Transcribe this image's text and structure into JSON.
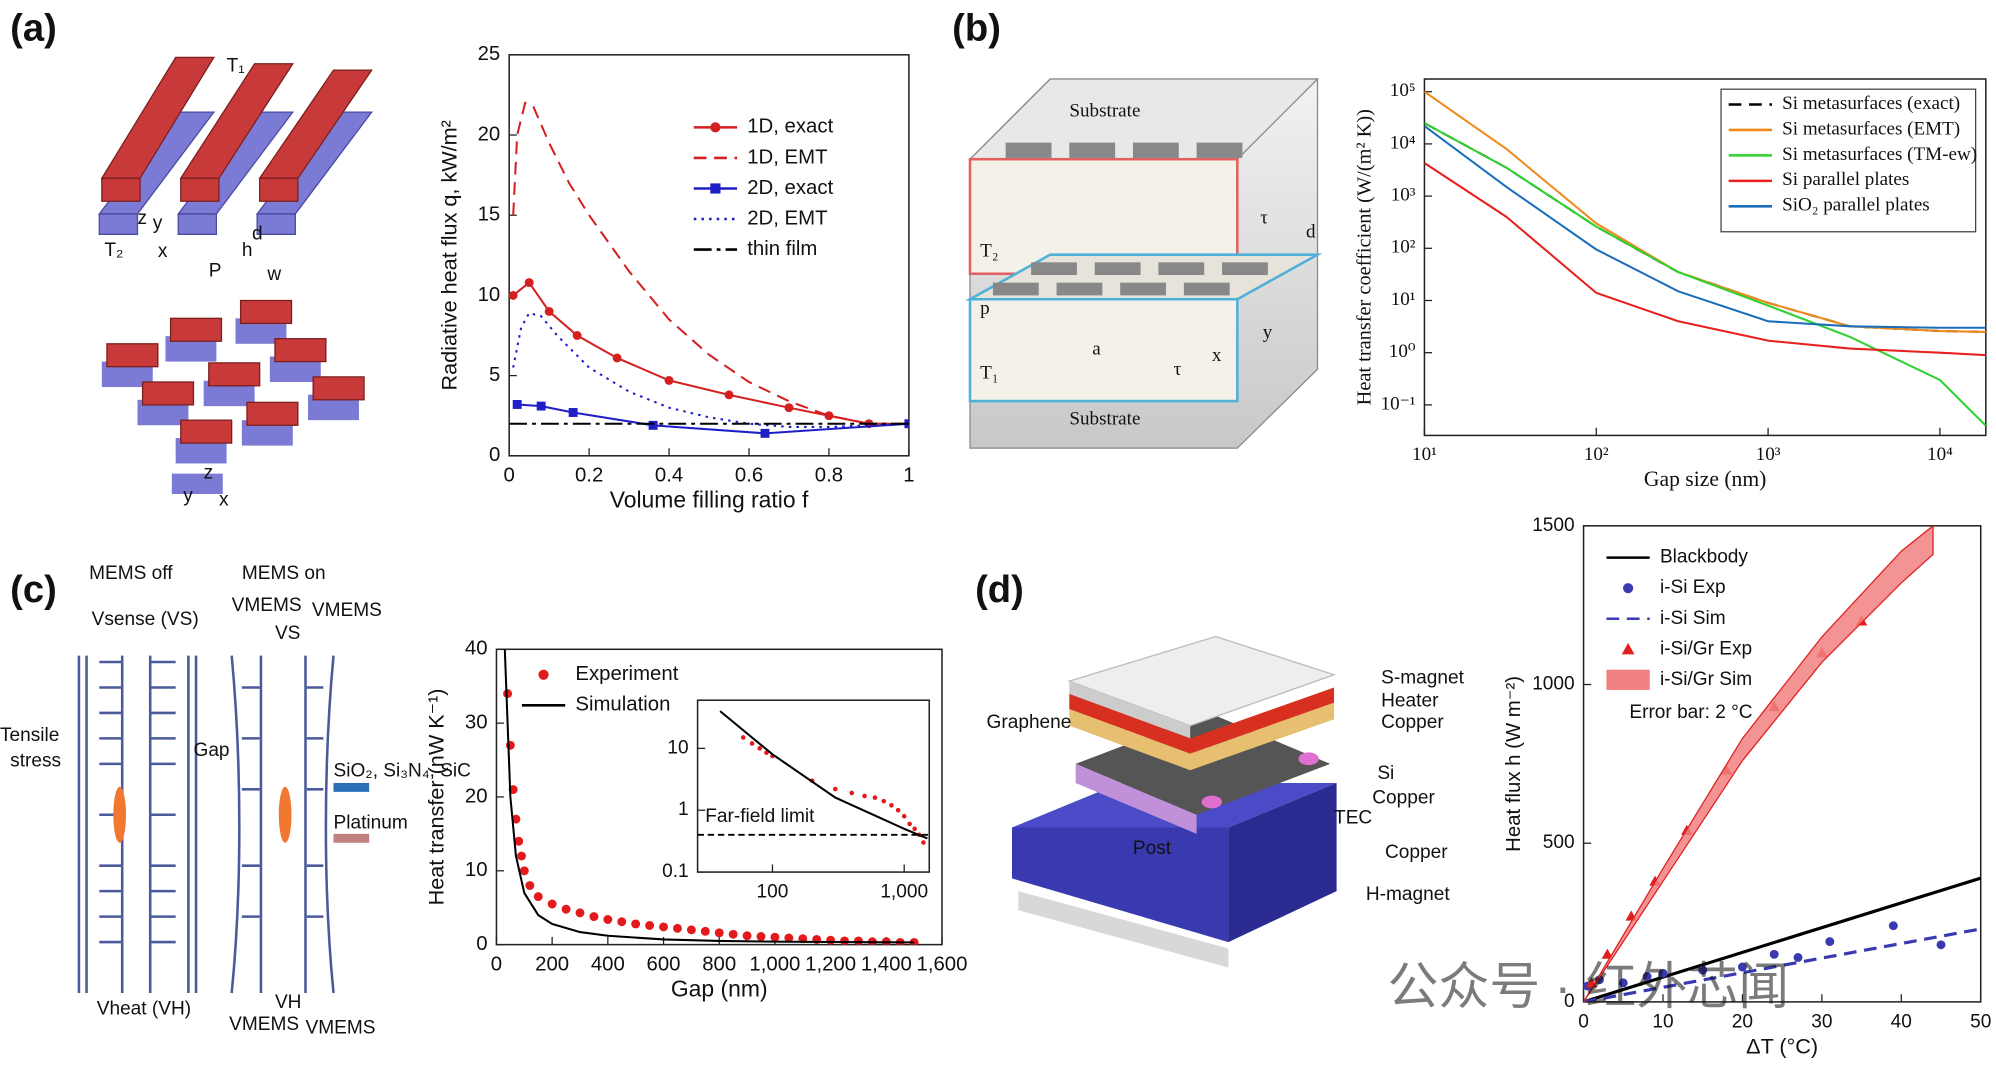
{
  "panel_labels": [
    "(a)",
    "(b)",
    "(c)",
    "(d)"
  ],
  "diagrams": {
    "a": [
      "T₁",
      "T₂",
      "z",
      "y",
      "x",
      "d",
      "h",
      "P",
      "w",
      "z",
      "y",
      "x"
    ],
    "b": [
      "Substrate",
      "T₂",
      "τ",
      "d",
      "p",
      "a",
      "x",
      "y",
      "T₁",
      "τ",
      "Substrate"
    ],
    "c": [
      "MEMS off",
      "MEMS on",
      "Vsense (VS)",
      "Tensile",
      "stress",
      "Gap",
      "VMEMS",
      "VMEMS",
      "VS",
      "SiO₂, Si₃N₄, SiC",
      "Platinum",
      "Vheat (VH)",
      "VMEMS",
      "VH",
      "VMEMS"
    ],
    "d": [
      "S-magnet",
      "Heater",
      "Copper",
      "Graphene",
      "Si",
      "Copper",
      "TEC",
      "Copper",
      "Post",
      "H-magnet"
    ]
  },
  "watermark": "公众号 · 红外芯闻",
  "chart_data": [
    {
      "type": "line",
      "xlabel": "Volume filling ratio f",
      "ylabel": "Radiative heat flux q, kW/m²",
      "xlim": [
        0,
        1
      ],
      "ylim": [
        0,
        25
      ],
      "xticks": [
        0,
        0.2,
        0.4,
        0.6,
        0.8,
        1
      ],
      "yticks": [
        0,
        5,
        10,
        15,
        20,
        25
      ],
      "series": [
        {
          "name": "1D, exact",
          "color": "#d42020",
          "style": "solid",
          "marker": "circle",
          "x": [
            0.01,
            0.05,
            0.1,
            0.17,
            0.27,
            0.4,
            0.55,
            0.7,
            0.8,
            0.9,
            1
          ],
          "values": [
            10,
            10.8,
            9,
            7.5,
            6.1,
            4.7,
            3.8,
            3.0,
            2.5,
            2.0,
            2.0
          ]
        },
        {
          "name": "1D, EMT",
          "color": "#d42020",
          "style": "dashed",
          "marker": null,
          "x": [
            0.01,
            0.02,
            0.04,
            0.06,
            0.1,
            0.15,
            0.2,
            0.3,
            0.4,
            0.5,
            0.6,
            0.7,
            0.8,
            0.9,
            1
          ],
          "values": [
            15,
            20,
            22,
            21.8,
            19.5,
            17,
            15,
            11.5,
            8.5,
            6.3,
            4.6,
            3.4,
            2.5,
            2.0,
            2.0
          ]
        },
        {
          "name": "2D, exact",
          "color": "#1f1fc8",
          "style": "solid",
          "marker": "square",
          "x": [
            0.02,
            0.08,
            0.16,
            0.36,
            0.64,
            1
          ],
          "values": [
            3.2,
            3.1,
            2.7,
            1.9,
            1.4,
            2.0
          ]
        },
        {
          "name": "2D, EMT",
          "color": "#1f1fc8",
          "style": "dotted",
          "marker": null,
          "x": [
            0.01,
            0.03,
            0.05,
            0.08,
            0.12,
            0.2,
            0.3,
            0.4,
            0.5,
            0.6,
            0.7,
            0.8,
            0.9,
            1
          ],
          "values": [
            5.5,
            8,
            8.9,
            8.7,
            7.5,
            5.5,
            4,
            3,
            2.4,
            2.0,
            1.8,
            1.8,
            1.9,
            2.0
          ]
        },
        {
          "name": "thin film",
          "color": "#000000",
          "style": "dashdot",
          "marker": null,
          "x": [
            0,
            1
          ],
          "values": [
            2,
            2
          ]
        }
      ]
    },
    {
      "type": "line",
      "xlabel": "Gap size (nm)",
      "ylabel": "Heat transfer coefficient (W/(m² K))",
      "xscale": "log",
      "yscale": "log",
      "xlim": [
        10,
        18500
      ],
      "ylim": [
        0.026,
        175000
      ],
      "xticks": [
        {
          "value": 10,
          "label": "10¹"
        },
        {
          "value": 100,
          "label": "10²"
        },
        {
          "value": 1000,
          "label": "10³"
        },
        {
          "value": 10000,
          "label": "10⁴"
        }
      ],
      "yticks": [
        {
          "value": 0.1,
          "label": "10⁻¹"
        },
        {
          "value": 1,
          "label": "10⁰"
        },
        {
          "value": 10,
          "label": "10¹"
        },
        {
          "value": 100,
          "label": "10²"
        },
        {
          "value": 1000,
          "label": "10³"
        },
        {
          "value": 10000,
          "label": "10⁴"
        },
        {
          "value": 100000,
          "label": "10⁵"
        }
      ],
      "x": [
        10,
        30,
        100,
        300,
        1000,
        3000,
        10000,
        18500
      ],
      "series": [
        {
          "name": "Si metasurfaces (exact)",
          "color": "#000000",
          "style": "dashed",
          "marker": null,
          "values": [
            25000,
            3500,
            260,
            35,
            9,
            3.2,
            2.6,
            2.5
          ]
        },
        {
          "name": "Si metasurfaces (EMT)",
          "color": "#f08a1c",
          "style": "solid",
          "marker": null,
          "values": [
            100000,
            8000,
            300,
            35,
            9,
            3.2,
            2.6,
            2.5
          ]
        },
        {
          "name": "Si metasurfaces (TM-ew)",
          "color": "#2fd12f",
          "style": "solid",
          "marker": null,
          "values": [
            25000,
            3500,
            260,
            35,
            8,
            2,
            0.3,
            0.04
          ]
        },
        {
          "name": "Si parallel plates",
          "color": "#e8201e",
          "style": "solid",
          "marker": null,
          "values": [
            4300,
            400,
            14,
            4,
            1.7,
            1.2,
            1.0,
            0.9
          ]
        },
        {
          "name": "SiO₂ parallel plates",
          "color": "#1a6fb8",
          "style": "solid",
          "marker": null,
          "values": [
            22000,
            1500,
            95,
            15,
            4,
            3.2,
            3.0,
            3.0
          ]
        }
      ]
    },
    {
      "type": "scatter",
      "xlabel": "Gap (nm)",
      "ylabel": "Heat transfer (nW K⁻¹)",
      "xlim": [
        0,
        1600
      ],
      "ylim": [
        0,
        40
      ],
      "xticks": [
        0,
        200,
        400,
        600,
        800,
        {
          "value": 1000,
          "label": "1,000"
        },
        {
          "value": 1200,
          "label": "1,200"
        },
        {
          "value": 1400,
          "label": "1,400"
        },
        {
          "value": 1600,
          "label": "1,600"
        }
      ],
      "yticks": [
        0,
        10,
        20,
        30,
        40
      ],
      "series": [
        {
          "name": "Experiment",
          "color": "#e31a1c",
          "style": "none",
          "marker": "circle",
          "x": [
            40,
            50,
            60,
            70,
            80,
            90,
            100,
            120,
            150,
            200,
            250,
            300,
            350,
            400,
            450,
            500,
            550,
            600,
            650,
            700,
            750,
            800,
            850,
            900,
            950,
            1000,
            1050,
            1100,
            1150,
            1200,
            1250,
            1300,
            1350,
            1400,
            1450,
            1500
          ],
          "values": [
            34,
            27,
            21,
            17,
            14,
            12,
            10,
            8,
            6.5,
            5.5,
            4.8,
            4.3,
            3.8,
            3.4,
            3.1,
            2.8,
            2.6,
            2.4,
            2.2,
            2.0,
            1.8,
            1.6,
            1.4,
            1.2,
            1.1,
            1.0,
            0.9,
            0.8,
            0.7,
            0.6,
            0.5,
            0.5,
            0.4,
            0.4,
            0.3,
            0.3
          ]
        },
        {
          "name": "Simulation",
          "color": "#000000",
          "style": "solid",
          "marker": null,
          "x": [
            30,
            50,
            70,
            100,
            150,
            200,
            300,
            400,
            600,
            800,
            1000,
            1200,
            1500
          ],
          "values": [
            40,
            20,
            12,
            7,
            4,
            2.8,
            1.7,
            1.2,
            0.7,
            0.5,
            0.4,
            0.35,
            0.3
          ]
        }
      ]
    },
    {
      "type": "scatter",
      "xscale": "log",
      "yscale": "log",
      "xlim": [
        27,
        1550
      ],
      "ylim": [
        0.1,
        60
      ],
      "xticks": [
        100,
        {
          "value": 1000,
          "label": "1,000"
        }
      ],
      "yticks": [
        0.1,
        1,
        10
      ],
      "hlines": [
        {
          "value": 0.4,
          "label": "Far-field limit"
        }
      ],
      "series": [
        {
          "color": "#e31a1c",
          "style": "none",
          "marker": "circle",
          "x": [
            60,
            70,
            80,
            90,
            100,
            200,
            300,
            400,
            500,
            600,
            700,
            800,
            900,
            1000,
            1100,
            1200,
            1300,
            1400
          ],
          "values": [
            15,
            12,
            10,
            8.5,
            7.5,
            3,
            2.2,
            1.9,
            1.7,
            1.6,
            1.4,
            1.2,
            1,
            0.8,
            0.6,
            0.5,
            0.4,
            0.3
          ]
        },
        {
          "color": "#000000",
          "style": "solid",
          "marker": null,
          "x": [
            40,
            100,
            300,
            1000,
            1500
          ],
          "values": [
            40,
            8,
            1.6,
            0.5,
            0.35
          ]
        }
      ]
    },
    {
      "type": "line",
      "xlabel": "ΔT (°C)",
      "ylabel": "Heat flux h (W m⁻²)",
      "xlim": [
        0,
        50
      ],
      "ylim": [
        0,
        1500
      ],
      "xticks": [
        0,
        10,
        20,
        30,
        40,
        50
      ],
      "yticks": [
        0,
        500,
        1000,
        1500
      ],
      "annotation": "Error bar: 2 °C",
      "series": [
        {
          "name": "Blackbody",
          "color": "#000000",
          "style": "solid",
          "marker": null,
          "x": [
            0,
            50
          ],
          "values": [
            0,
            390
          ]
        },
        {
          "name": "i-Si Exp",
          "color": "#3a3ab0",
          "style": "none",
          "marker": "circle",
          "x": [
            0.5,
            2,
            5,
            8,
            10,
            15,
            20,
            24,
            27,
            31,
            39,
            45
          ],
          "values": [
            50,
            70,
            60,
            80,
            90,
            100,
            110,
            150,
            140,
            190,
            240,
            180
          ]
        },
        {
          "name": "i-Si Sim",
          "color": "#3a3ab0",
          "style": "dashed",
          "marker": null,
          "x": [
            0,
            50
          ],
          "values": [
            0,
            230
          ]
        },
        {
          "name": "i-Si/Gr Exp",
          "color": "#e02020",
          "style": "none",
          "marker": "triangle",
          "x": [
            1,
            3,
            6,
            9,
            13,
            18,
            24,
            30,
            35
          ],
          "values": [
            60,
            150,
            270,
            380,
            540,
            730,
            930,
            1100,
            1200
          ]
        },
        {
          "name": "i-Si/Gr Sim",
          "color": "#f28080",
          "style": "band",
          "marker": null,
          "x": [
            0,
            10,
            20,
            30,
            40,
            44
          ],
          "lower": [
            0,
            380,
            760,
            1070,
            1320,
            1410
          ],
          "upper": [
            0,
            420,
            830,
            1150,
            1420,
            1500
          ]
        }
      ]
    }
  ]
}
